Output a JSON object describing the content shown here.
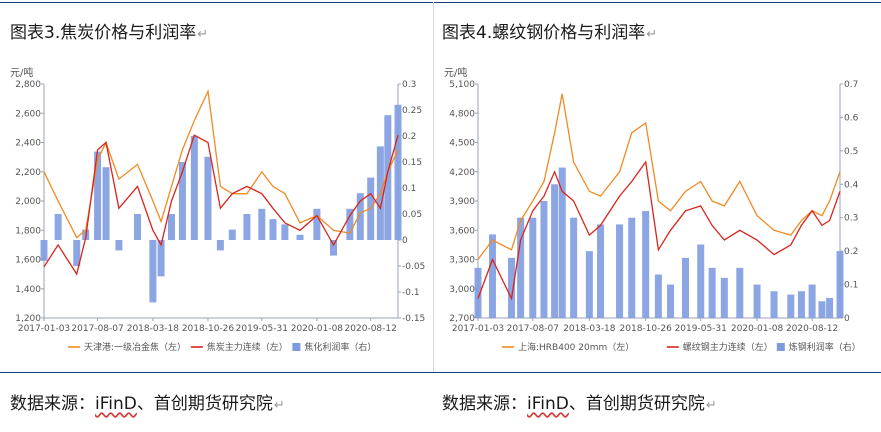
{
  "left": {
    "caption": "图表3.焦炭价格与利润率",
    "source_prefix": "数据来源：",
    "source_wavy": "iFinD",
    "source_suffix": "、首创期货研究院",
    "return_mark": "↵"
  },
  "right": {
    "caption": "图表4.螺纹钢价格与利润率",
    "source_prefix": "数据来源：",
    "source_wavy": "iFinD",
    "source_suffix": "、首创期货研究院",
    "return_mark": "↵"
  },
  "colors": {
    "bar": "#7f9be0",
    "line_orange": "#f08a24",
    "line_red": "#d9241c",
    "axis": "#9aa3b5",
    "text": "#555555"
  },
  "chart_data": [
    {
      "type": "bar+line",
      "unit_label": "元/吨",
      "ylim_left": [
        1200,
        2800
      ],
      "ylim_right": [
        -0.15,
        0.3
      ],
      "yticks_left": [
        "1,200",
        "1,400",
        "1,600",
        "1,800",
        "2,000",
        "2,200",
        "2,400",
        "2,600",
        "2,800"
      ],
      "yticks_right": [
        "-0.15",
        "-0.1",
        "-0.05",
        "0",
        "0.05",
        "0.1",
        "0.15",
        "0.2",
        "0.25",
        "0.3"
      ],
      "xticks": [
        "2017-01-03",
        "2017-08-07",
        "2018-03-18",
        "2018-10-26",
        "2019-05-31",
        "2020-01-08",
        "2020-08-12"
      ],
      "xlim": [
        "2017-01-03",
        "2020-11-30"
      ],
      "series": [
        {
          "name": "天津港:一级冶金焦（左）",
          "kind": "line",
          "axis": "left",
          "x": [
            "2017-01-03",
            "2017-03-01",
            "2017-05-15",
            "2017-06-20",
            "2017-08-07",
            "2017-09-10",
            "2017-11-01",
            "2018-01-15",
            "2018-03-18",
            "2018-04-20",
            "2018-06-01",
            "2018-07-15",
            "2018-09-01",
            "2018-10-26",
            "2018-12-15",
            "2019-02-01",
            "2019-04-01",
            "2019-05-31",
            "2019-07-15",
            "2019-09-01",
            "2019-11-01",
            "2020-01-08",
            "2020-03-15",
            "2020-05-20",
            "2020-07-01",
            "2020-08-12",
            "2020-09-20",
            "2020-10-20",
            "2020-11-30"
          ],
          "y": [
            2200,
            2000,
            1750,
            1800,
            2280,
            2400,
            2150,
            2250,
            2000,
            1860,
            2100,
            2350,
            2550,
            2750,
            2100,
            2050,
            2050,
            2200,
            2100,
            2050,
            1850,
            1900,
            1800,
            1780,
            1920,
            1950,
            2050,
            2200,
            2350
          ]
        },
        {
          "name": "焦炭主力连续（左）",
          "kind": "line",
          "axis": "left",
          "x": [
            "2017-01-03",
            "2017-03-01",
            "2017-05-15",
            "2017-06-20",
            "2017-08-07",
            "2017-09-10",
            "2017-11-01",
            "2018-01-15",
            "2018-03-18",
            "2018-04-20",
            "2018-06-01",
            "2018-07-15",
            "2018-09-01",
            "2018-10-26",
            "2018-12-15",
            "2019-02-01",
            "2019-04-01",
            "2019-05-31",
            "2019-07-15",
            "2019-09-01",
            "2019-11-01",
            "2020-01-08",
            "2020-03-15",
            "2020-05-20",
            "2020-07-01",
            "2020-08-12",
            "2020-09-20",
            "2020-10-20",
            "2020-11-30"
          ],
          "y": [
            1550,
            1700,
            1500,
            1750,
            2350,
            2400,
            1950,
            2100,
            1800,
            1700,
            2000,
            2200,
            2450,
            2400,
            1950,
            2050,
            2100,
            2050,
            1950,
            1850,
            1800,
            1900,
            1700,
            1900,
            2000,
            2050,
            1950,
            2200,
            2450
          ]
        },
        {
          "name": "焦化利润率（右）",
          "kind": "bar",
          "axis": "right",
          "x": [
            "2017-01-03",
            "2017-03-01",
            "2017-05-15",
            "2017-06-20",
            "2017-08-07",
            "2017-09-10",
            "2017-11-01",
            "2018-01-15",
            "2018-03-18",
            "2018-04-20",
            "2018-06-01",
            "2018-07-15",
            "2018-09-01",
            "2018-10-26",
            "2018-12-15",
            "2019-02-01",
            "2019-04-01",
            "2019-05-31",
            "2019-07-15",
            "2019-09-01",
            "2019-11-01",
            "2020-01-08",
            "2020-03-15",
            "2020-05-20",
            "2020-07-01",
            "2020-08-12",
            "2020-09-20",
            "2020-10-20",
            "2020-11-30"
          ],
          "y": [
            -0.04,
            0.05,
            -0.05,
            0.02,
            0.17,
            0.14,
            -0.02,
            0.05,
            -0.12,
            -0.07,
            0.05,
            0.15,
            0.2,
            0.16,
            -0.02,
            0.02,
            0.05,
            0.06,
            0.04,
            0.03,
            0.01,
            0.06,
            -0.03,
            0.06,
            0.09,
            0.12,
            0.18,
            0.24,
            0.26
          ]
        }
      ],
      "legend_position": "bottom"
    },
    {
      "type": "bar+line",
      "unit_label": "元/吨",
      "ylim_left": [
        2700,
        5100
      ],
      "ylim_right": [
        0,
        0.7
      ],
      "yticks_left": [
        "2,700",
        "3,000",
        "3,300",
        "3,600",
        "3,900",
        "4,200",
        "4,500",
        "4,800",
        "5,100"
      ],
      "yticks_right": [
        "0",
        "0.1",
        "0.2",
        "0.3",
        "0.4",
        "0.5",
        "0.6",
        "0.7"
      ],
      "xticks": [
        "2017-01-03",
        "2017-08-07",
        "2018-03-18",
        "2018-10-26",
        "2019-05-31",
        "2020-01-08",
        "2020-08-12"
      ],
      "xlim": [
        "2017-01-03",
        "2020-11-30"
      ],
      "series": [
        {
          "name": "上海:HRB400 20mm（左）",
          "kind": "line",
          "axis": "left",
          "x": [
            "2017-01-03",
            "2017-03-01",
            "2017-05-15",
            "2017-06-20",
            "2017-08-07",
            "2017-09-20",
            "2017-11-01",
            "2017-12-01",
            "2018-01-15",
            "2018-03-18",
            "2018-05-01",
            "2018-07-15",
            "2018-09-01",
            "2018-10-26",
            "2018-12-15",
            "2019-02-01",
            "2019-04-01",
            "2019-05-31",
            "2019-07-15",
            "2019-09-01",
            "2019-11-01",
            "2020-01-08",
            "2020-03-15",
            "2020-05-20",
            "2020-07-01",
            "2020-08-12",
            "2020-09-20",
            "2020-10-20",
            "2020-11-30"
          ],
          "y": [
            3300,
            3500,
            3400,
            3700,
            3900,
            4100,
            4600,
            5000,
            4300,
            4000,
            3950,
            4200,
            4600,
            4700,
            3900,
            3800,
            4000,
            4100,
            3900,
            3850,
            4100,
            3750,
            3600,
            3550,
            3700,
            3800,
            3750,
            3900,
            4200
          ]
        },
        {
          "name": "螺纹钢主力连续（左）",
          "kind": "line",
          "axis": "left",
          "x": [
            "2017-01-03",
            "2017-03-01",
            "2017-05-15",
            "2017-06-20",
            "2017-08-07",
            "2017-09-20",
            "2017-11-01",
            "2017-12-01",
            "2018-01-15",
            "2018-03-18",
            "2018-05-01",
            "2018-07-15",
            "2018-09-01",
            "2018-10-26",
            "2018-12-15",
            "2019-02-01",
            "2019-04-01",
            "2019-05-31",
            "2019-07-15",
            "2019-09-01",
            "2019-11-01",
            "2020-01-08",
            "2020-03-15",
            "2020-05-20",
            "2020-07-01",
            "2020-08-12",
            "2020-09-20",
            "2020-10-20",
            "2020-11-30"
          ],
          "y": [
            2900,
            3300,
            2900,
            3500,
            3800,
            3950,
            4200,
            4000,
            3900,
            3550,
            3650,
            3950,
            4100,
            4300,
            3400,
            3600,
            3800,
            3850,
            3650,
            3500,
            3600,
            3500,
            3350,
            3450,
            3650,
            3800,
            3650,
            3700,
            4000
          ]
        },
        {
          "name": "炼钢利润率（右）",
          "kind": "bar",
          "axis": "right",
          "x": [
            "2017-01-03",
            "2017-03-01",
            "2017-05-15",
            "2017-06-20",
            "2017-08-07",
            "2017-09-20",
            "2017-11-01",
            "2017-12-01",
            "2018-01-15",
            "2018-03-18",
            "2018-05-01",
            "2018-07-15",
            "2018-09-01",
            "2018-10-26",
            "2018-12-15",
            "2019-02-01",
            "2019-04-01",
            "2019-05-31",
            "2019-07-15",
            "2019-09-01",
            "2019-11-01",
            "2020-01-08",
            "2020-03-15",
            "2020-05-20",
            "2020-07-01",
            "2020-08-12",
            "2020-09-20",
            "2020-10-20",
            "2020-11-30"
          ],
          "y": [
            0.15,
            0.25,
            0.18,
            0.3,
            0.3,
            0.35,
            0.4,
            0.45,
            0.3,
            0.2,
            0.28,
            0.28,
            0.3,
            0.32,
            0.13,
            0.1,
            0.18,
            0.22,
            0.15,
            0.12,
            0.15,
            0.1,
            0.08,
            0.07,
            0.08,
            0.1,
            0.05,
            0.06,
            0.2
          ]
        }
      ],
      "legend_position": "bottom"
    }
  ]
}
